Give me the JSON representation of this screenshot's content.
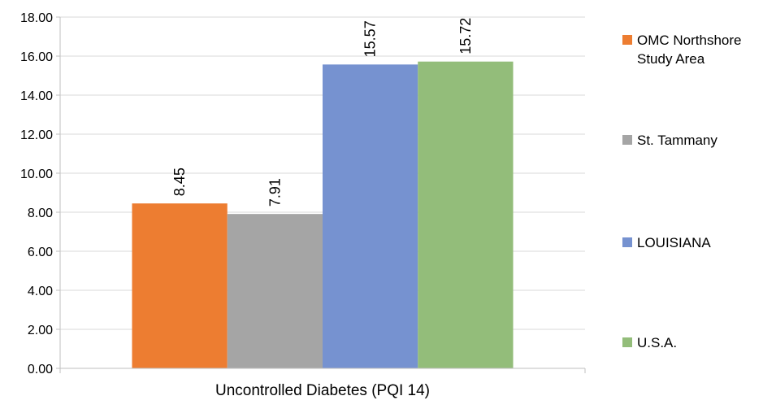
{
  "chart_data": {
    "type": "bar",
    "title": "",
    "xlabel": "Uncontrolled Diabetes (PQI 14)",
    "ylabel": "",
    "ylim": [
      0,
      18
    ],
    "yticks": [
      "0.00",
      "2.00",
      "4.00",
      "6.00",
      "8.00",
      "10.00",
      "12.00",
      "14.00",
      "16.00",
      "18.00"
    ],
    "grid": true,
    "legend_position": "right",
    "categories": [
      "Uncontrolled Diabetes (PQI 14)"
    ],
    "series": [
      {
        "name": "OMC Northshore Study Area",
        "values": [
          8.45
        ],
        "label": "8.45",
        "color": "#ED7D31"
      },
      {
        "name": "St. Tammany",
        "values": [
          7.91
        ],
        "label": "7.91",
        "color": "#A5A5A5"
      },
      {
        "name": "LOUISIANA",
        "values": [
          15.57
        ],
        "label": "15.57",
        "color": "#7692D0"
      },
      {
        "name": "U.S.A.",
        "values": [
          15.72
        ],
        "label": "15.72",
        "color": "#93BD7A"
      }
    ]
  }
}
